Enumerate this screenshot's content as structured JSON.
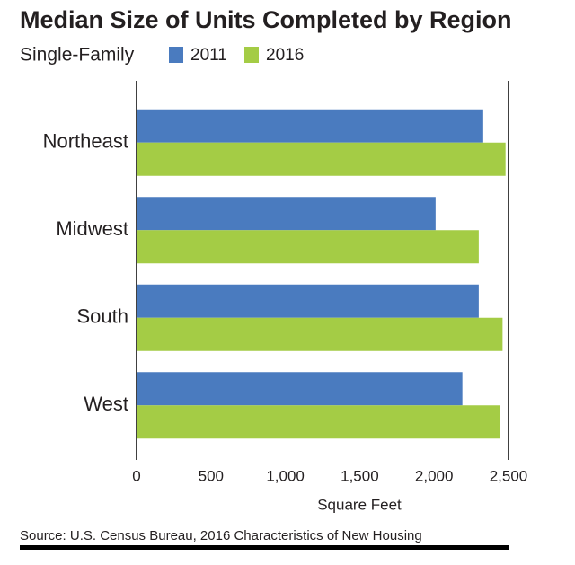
{
  "chart_data": {
    "type": "bar",
    "orientation": "horizontal",
    "title": "Median Size of Units Completed by Region",
    "subtitle": "Single-Family",
    "categories": [
      "Northeast",
      "Midwest",
      "South",
      "West"
    ],
    "series": [
      {
        "name": "2011",
        "color": "#4a7bbf",
        "values": [
          2330,
          2010,
          2300,
          2190
        ]
      },
      {
        "name": "2016",
        "color": "#a4cc45",
        "values": [
          2480,
          2300,
          2460,
          2440
        ]
      }
    ],
    "xlim": [
      0,
      2500
    ],
    "xticks": [
      0,
      500,
      {
        "value": 1000,
        "label": "1,000"
      },
      {
        "value": 1500,
        "label": "1,500"
      },
      {
        "value": 2000,
        "label": "2,000"
      },
      {
        "value": 2500,
        "label": "2,500"
      }
    ],
    "xlabel": "Square Feet",
    "source": "Source: U.S. Census Bureau, 2016 Characteristics of New Housing"
  }
}
